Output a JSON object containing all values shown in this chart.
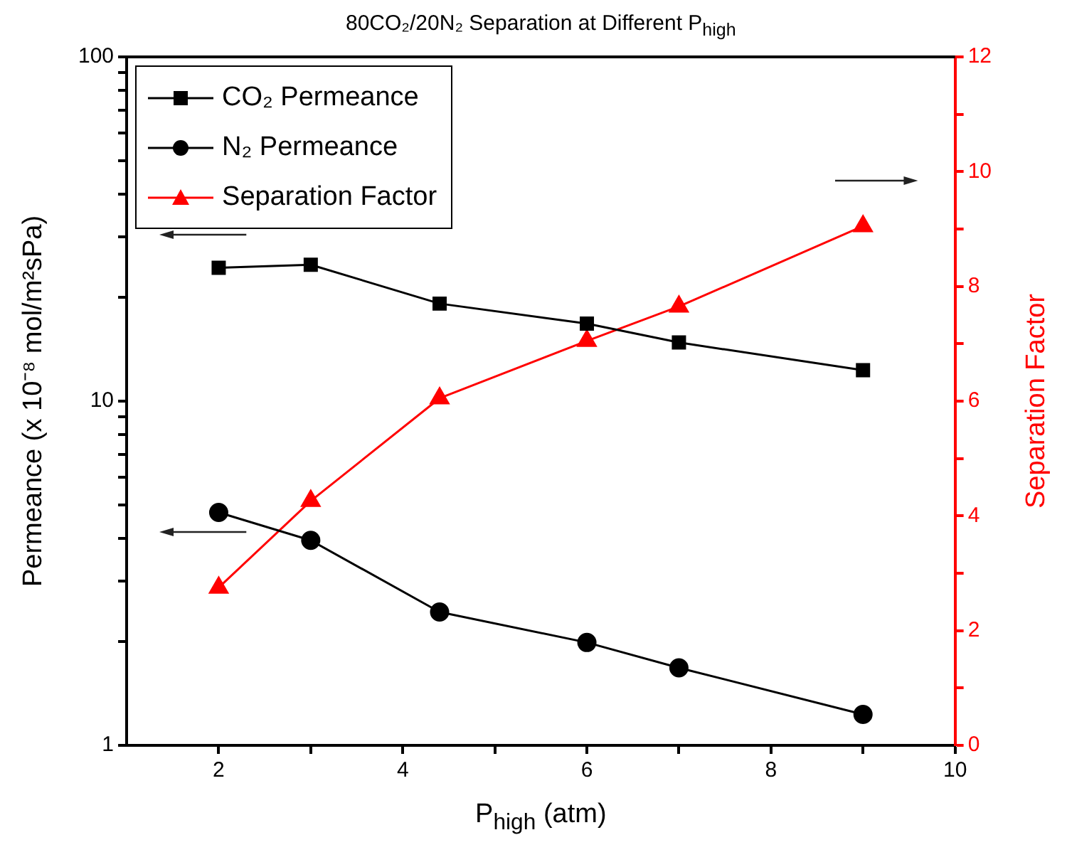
{
  "chart_data": {
    "type": "line",
    "title": "80CO₂/20N₂ Separation at Different P$_{high}$",
    "xlabel": "P$_{high}$ (atm)",
    "ylabel": "Permeance (x 10⁻⁸ mol/m²sPa)",
    "y2label": "Separation Factor",
    "x": [
      2,
      3,
      4.4,
      6,
      7,
      9
    ],
    "series": [
      {
        "name": "CO₂ Permeance",
        "color": "#000000",
        "marker": "square",
        "values": [
          24.4,
          24.9,
          19.2,
          16.8,
          14.8,
          12.3
        ]
      },
      {
        "name": "N₂ Permeance",
        "color": "#000000",
        "marker": "circle",
        "values": [
          4.75,
          3.94,
          2.44,
          1.99,
          1.68,
          1.23
        ]
      },
      {
        "name": "Separation Factor",
        "color": "#ff0000",
        "marker": "triangle",
        "axis": "y2",
        "values": [
          2.75,
          4.26,
          6.05,
          7.05,
          7.65,
          9.05
        ]
      }
    ],
    "xlim": [
      1,
      10
    ],
    "xticks": [
      2,
      {
        "value": 3,
        "label": null
      },
      4,
      {
        "value": 5,
        "label": null
      },
      6,
      {
        "value": 7,
        "label": null
      },
      8,
      {
        "value": 9,
        "label": null
      },
      10
    ],
    "ylim": [
      1,
      100
    ],
    "yticks": [
      1,
      {
        "value": 2,
        "label": null
      },
      {
        "value": 3,
        "label": null
      },
      {
        "value": 4,
        "label": null
      },
      {
        "value": 5,
        "label": null
      },
      {
        "value": 6,
        "label": null
      },
      {
        "value": 7,
        "label": null
      },
      {
        "value": 8,
        "label": null
      },
      {
        "value": 9,
        "label": null
      },
      10,
      {
        "value": 20,
        "label": null
      },
      {
        "value": 30,
        "label": null
      },
      {
        "value": 40,
        "label": null
      },
      {
        "value": 50,
        "label": null
      },
      {
        "value": 60,
        "label": null
      },
      {
        "value": 70,
        "label": null
      },
      {
        "value": 80,
        "label": null
      },
      {
        "value": 90,
        "label": null
      },
      100
    ],
    "y2lim": [
      0,
      12
    ],
    "y2ticks": [
      0,
      {
        "value": 1,
        "label": null
      },
      2,
      {
        "value": 3,
        "label": null
      },
      4,
      {
        "value": 5,
        "label": null
      },
      6,
      {
        "value": 7,
        "label": null
      },
      8,
      {
        "value": 9,
        "label": null
      },
      10,
      {
        "value": 11,
        "label": null
      },
      12
    ],
    "log": "y",
    "grid": false,
    "legend": "top left",
    "line_style": "solid"
  }
}
